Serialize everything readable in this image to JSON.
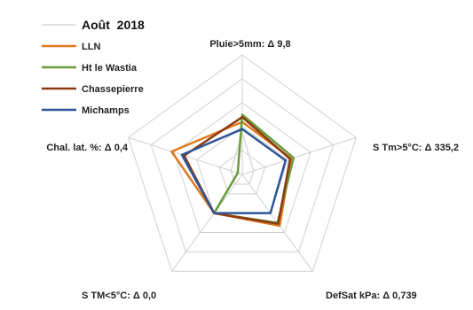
{
  "chart_data": {
    "type": "radar",
    "title": "Août  2018",
    "axes": [
      "Pluie>5mm: Δ 9,8",
      "S Tm>5°C: Δ 335,2",
      "DefSat kPa: Δ 0,739",
      "S TM<5°C: Δ 0,0",
      "Chal. lat. %: Δ 0,4"
    ],
    "rmax": 1,
    "grid_levels": 5,
    "legend_position": "top-left",
    "series": [
      {
        "name": "",
        "color": "#d9d9d9",
        "values": [
          0.35,
          0.1,
          0.1,
          0.1,
          0.1
        ]
      },
      {
        "name": "LLN",
        "color": "#e07a1f",
        "values": [
          0.44,
          0.43,
          0.53,
          0.4,
          0.62
        ]
      },
      {
        "name": "Ht le Wastia",
        "color": "#6a9a3a",
        "values": [
          0.5,
          0.45,
          0.5,
          0.4,
          0.04
        ]
      },
      {
        "name": "Chassepierre",
        "color": "#8b3a12",
        "values": [
          0.48,
          0.42,
          0.51,
          0.4,
          0.51
        ]
      },
      {
        "name": "Michamps",
        "color": "#2f5597",
        "values": [
          0.38,
          0.38,
          0.4,
          0.4,
          0.53
        ]
      }
    ]
  }
}
